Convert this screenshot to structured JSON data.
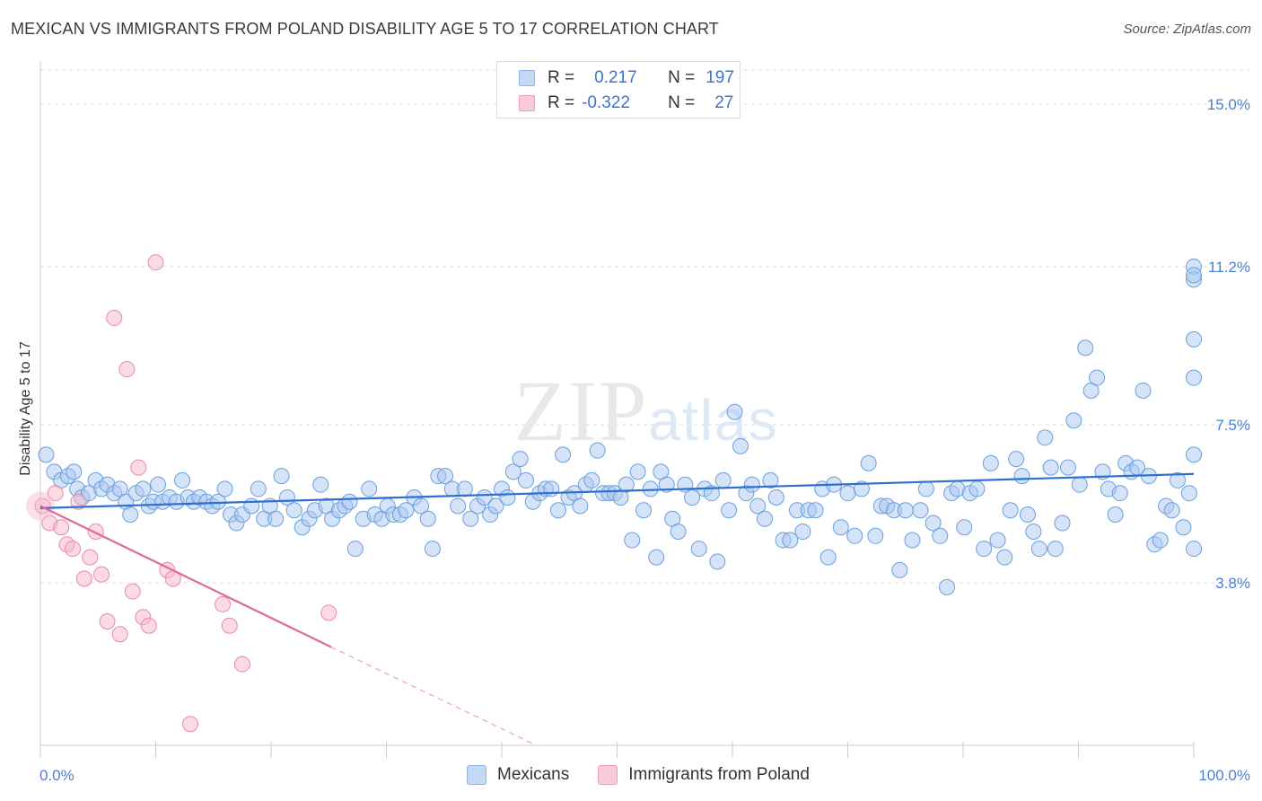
{
  "header": {
    "title": "MEXICAN VS IMMIGRANTS FROM POLAND DISABILITY AGE 5 TO 17 CORRELATION CHART",
    "source": "Source: ZipAtlas.com"
  },
  "legend_top": {
    "rows": [
      {
        "r_label": "R =",
        "r_value": "0.217",
        "n_label": "N =",
        "n_value": "197",
        "color": "#a9c8f0"
      },
      {
        "r_label": "R =",
        "r_value": "-0.322",
        "n_label": "N =",
        "n_value": "27",
        "color": "#f7b6c9"
      }
    ]
  },
  "legend_bottom": {
    "items": [
      {
        "label": "Mexicans",
        "color": "#b8d3f4"
      },
      {
        "label": "Immigrants from Poland",
        "color": "#f9c6d4"
      }
    ]
  },
  "chart_data": {
    "type": "scatter",
    "ylabel": "Disability Age 5 to 17",
    "xlabel": "",
    "xlim": [
      0,
      100
    ],
    "ylim": [
      0,
      15.8
    ],
    "x_tick_labels": [
      "0.0%",
      "100.0%"
    ],
    "y_ticks": [
      3.8,
      7.5,
      11.2,
      15.0
    ],
    "y_tick_labels": [
      "3.8%",
      "7.5%",
      "11.2%",
      "15.0%"
    ],
    "grid": "horizontal dashed",
    "watermark": "ZIPatlas",
    "series": [
      {
        "name": "Mexicans",
        "color": "#a9c8f0",
        "stroke": "#6a9fe0",
        "trend": {
          "x0": 0,
          "y0": 5.55,
          "x1": 100,
          "y1": 6.35
        },
        "points": [
          [
            0.5,
            6.8
          ],
          [
            1.2,
            6.4
          ],
          [
            1.8,
            6.2
          ],
          [
            2.4,
            6.3
          ],
          [
            2.9,
            6.4
          ],
          [
            3.2,
            6.0
          ],
          [
            3.6,
            5.8
          ],
          [
            4.2,
            5.9
          ],
          [
            4.8,
            6.2
          ],
          [
            5.3,
            6.0
          ],
          [
            5.8,
            6.1
          ],
          [
            6.4,
            5.9
          ],
          [
            6.9,
            6.0
          ],
          [
            7.4,
            5.7
          ],
          [
            7.8,
            5.4
          ],
          [
            8.3,
            5.9
          ],
          [
            8.9,
            6.0
          ],
          [
            9.4,
            5.6
          ],
          [
            9.8,
            5.7
          ],
          [
            10.2,
            6.1
          ],
          [
            10.6,
            5.7
          ],
          [
            11.2,
            5.8
          ],
          [
            11.8,
            5.7
          ],
          [
            12.3,
            6.2
          ],
          [
            12.8,
            5.8
          ],
          [
            13.3,
            5.7
          ],
          [
            13.8,
            5.8
          ],
          [
            14.4,
            5.7
          ],
          [
            14.9,
            5.6
          ],
          [
            15.4,
            5.7
          ],
          [
            16.0,
            6.0
          ],
          [
            16.5,
            5.4
          ],
          [
            17.0,
            5.2
          ],
          [
            17.5,
            5.4
          ],
          [
            18.3,
            5.6
          ],
          [
            18.9,
            6.0
          ],
          [
            19.4,
            5.3
          ],
          [
            19.9,
            5.6
          ],
          [
            20.4,
            5.3
          ],
          [
            20.9,
            6.3
          ],
          [
            21.4,
            5.8
          ],
          [
            22.0,
            5.5
          ],
          [
            22.7,
            5.1
          ],
          [
            23.3,
            5.3
          ],
          [
            23.8,
            5.5
          ],
          [
            24.3,
            6.1
          ],
          [
            24.8,
            5.6
          ],
          [
            25.3,
            5.3
          ],
          [
            25.9,
            5.5
          ],
          [
            26.4,
            5.6
          ],
          [
            26.8,
            5.7
          ],
          [
            27.3,
            4.6
          ],
          [
            28.0,
            5.3
          ],
          [
            28.5,
            6.0
          ],
          [
            29.0,
            5.4
          ],
          [
            29.6,
            5.3
          ],
          [
            30.1,
            5.6
          ],
          [
            30.6,
            5.4
          ],
          [
            31.2,
            5.4
          ],
          [
            31.7,
            5.5
          ],
          [
            32.4,
            5.8
          ],
          [
            33.0,
            5.6
          ],
          [
            33.6,
            5.3
          ],
          [
            34.0,
            4.6
          ],
          [
            34.5,
            6.3
          ],
          [
            35.1,
            6.3
          ],
          [
            35.7,
            6.0
          ],
          [
            36.2,
            5.6
          ],
          [
            36.8,
            6.0
          ],
          [
            37.3,
            5.3
          ],
          [
            37.9,
            5.6
          ],
          [
            38.5,
            5.8
          ],
          [
            39.0,
            5.4
          ],
          [
            39.5,
            5.6
          ],
          [
            40.0,
            6.0
          ],
          [
            40.5,
            5.8
          ],
          [
            41.0,
            6.4
          ],
          [
            41.6,
            6.7
          ],
          [
            42.1,
            6.2
          ],
          [
            42.7,
            5.7
          ],
          [
            43.3,
            5.9
          ],
          [
            43.8,
            6.0
          ],
          [
            44.3,
            6.0
          ],
          [
            44.9,
            5.5
          ],
          [
            45.3,
            6.8
          ],
          [
            45.8,
            5.8
          ],
          [
            46.3,
            5.9
          ],
          [
            46.8,
            5.6
          ],
          [
            47.3,
            6.1
          ],
          [
            47.8,
            6.2
          ],
          [
            48.3,
            6.9
          ],
          [
            48.8,
            5.9
          ],
          [
            49.3,
            5.9
          ],
          [
            49.8,
            5.9
          ],
          [
            50.3,
            5.8
          ],
          [
            50.8,
            6.1
          ],
          [
            51.3,
            4.8
          ],
          [
            51.8,
            6.4
          ],
          [
            52.3,
            5.5
          ],
          [
            52.9,
            6.0
          ],
          [
            53.4,
            4.4
          ],
          [
            53.8,
            6.4
          ],
          [
            54.3,
            6.1
          ],
          [
            54.8,
            5.3
          ],
          [
            55.3,
            5.0
          ],
          [
            55.9,
            6.1
          ],
          [
            56.5,
            5.8
          ],
          [
            57.1,
            4.6
          ],
          [
            57.6,
            6.0
          ],
          [
            58.2,
            5.9
          ],
          [
            58.7,
            4.3
          ],
          [
            59.2,
            6.2
          ],
          [
            59.7,
            5.5
          ],
          [
            60.2,
            7.8
          ],
          [
            60.7,
            7.0
          ],
          [
            61.2,
            5.9
          ],
          [
            61.7,
            6.1
          ],
          [
            62.2,
            5.6
          ],
          [
            62.8,
            5.3
          ],
          [
            63.3,
            6.2
          ],
          [
            63.8,
            5.8
          ],
          [
            64.4,
            4.8
          ],
          [
            65.0,
            4.8
          ],
          [
            65.6,
            5.5
          ],
          [
            66.1,
            5.0
          ],
          [
            66.6,
            5.5
          ],
          [
            67.2,
            5.5
          ],
          [
            67.8,
            6.0
          ],
          [
            68.3,
            4.4
          ],
          [
            68.8,
            6.1
          ],
          [
            69.4,
            5.1
          ],
          [
            70.0,
            5.9
          ],
          [
            70.6,
            4.9
          ],
          [
            71.2,
            6.0
          ],
          [
            71.8,
            6.6
          ],
          [
            72.4,
            4.9
          ],
          [
            72.9,
            5.6
          ],
          [
            73.4,
            5.6
          ],
          [
            74.0,
            5.5
          ],
          [
            74.5,
            4.1
          ],
          [
            75.0,
            5.5
          ],
          [
            75.6,
            4.8
          ],
          [
            76.3,
            5.5
          ],
          [
            76.8,
            6.0
          ],
          [
            77.4,
            5.2
          ],
          [
            78.0,
            4.9
          ],
          [
            78.6,
            3.7
          ],
          [
            79.0,
            5.9
          ],
          [
            79.5,
            6.0
          ],
          [
            80.1,
            5.1
          ],
          [
            80.6,
            5.9
          ],
          [
            81.2,
            6.0
          ],
          [
            81.8,
            4.6
          ],
          [
            82.4,
            6.6
          ],
          [
            83.0,
            4.8
          ],
          [
            83.6,
            4.4
          ],
          [
            84.1,
            5.5
          ],
          [
            84.6,
            6.7
          ],
          [
            85.1,
            6.3
          ],
          [
            85.6,
            5.4
          ],
          [
            86.1,
            5.0
          ],
          [
            86.6,
            4.6
          ],
          [
            87.1,
            7.2
          ],
          [
            87.6,
            6.5
          ],
          [
            88.0,
            4.6
          ],
          [
            88.6,
            5.2
          ],
          [
            89.1,
            6.5
          ],
          [
            89.6,
            7.6
          ],
          [
            90.1,
            6.1
          ],
          [
            90.6,
            9.3
          ],
          [
            91.1,
            8.3
          ],
          [
            91.6,
            8.6
          ],
          [
            92.1,
            6.4
          ],
          [
            92.6,
            6.0
          ],
          [
            93.2,
            5.4
          ],
          [
            93.6,
            5.9
          ],
          [
            94.1,
            6.6
          ],
          [
            94.6,
            6.4
          ],
          [
            95.1,
            6.5
          ],
          [
            95.6,
            8.3
          ],
          [
            96.1,
            6.3
          ],
          [
            96.6,
            4.7
          ],
          [
            97.1,
            4.8
          ],
          [
            97.6,
            5.6
          ],
          [
            98.1,
            5.5
          ],
          [
            98.6,
            6.2
          ],
          [
            99.1,
            5.1
          ],
          [
            99.6,
            5.9
          ],
          [
            100.0,
            8.6
          ],
          [
            100.6,
            4.6
          ],
          [
            101.4,
            11.2
          ],
          [
            101.8,
            10.9
          ],
          [
            103.0,
            11.0
          ],
          [
            104.2,
            9.5
          ],
          [
            104.4,
            6.8
          ]
        ]
      },
      {
        "name": "Immigrants from Poland",
        "color": "#f7b6c9",
        "stroke": "#e98aa8",
        "trend": {
          "x0": 0,
          "y0": 5.6,
          "x1": 25.2,
          "y1": 2.3
        },
        "trend_dashed_to": {
          "x": 43.0,
          "y": 0.0
        },
        "points": [
          [
            0.2,
            5.6
          ],
          [
            0.8,
            5.2
          ],
          [
            1.3,
            5.9
          ],
          [
            1.8,
            5.1
          ],
          [
            2.3,
            4.7
          ],
          [
            2.8,
            4.6
          ],
          [
            3.3,
            5.7
          ],
          [
            3.8,
            3.9
          ],
          [
            4.3,
            4.4
          ],
          [
            4.8,
            5.0
          ],
          [
            5.3,
            4.0
          ],
          [
            5.8,
            2.9
          ],
          [
            6.4,
            10.0
          ],
          [
            6.9,
            2.6
          ],
          [
            7.5,
            8.8
          ],
          [
            8.0,
            3.6
          ],
          [
            8.5,
            6.5
          ],
          [
            8.9,
            3.0
          ],
          [
            9.4,
            2.8
          ],
          [
            10.0,
            11.3
          ],
          [
            11.0,
            4.1
          ],
          [
            11.5,
            3.9
          ],
          [
            13.0,
            0.5
          ],
          [
            15.8,
            3.3
          ],
          [
            16.4,
            2.8
          ],
          [
            17.5,
            1.9
          ],
          [
            25.0,
            3.1
          ]
        ]
      }
    ]
  }
}
